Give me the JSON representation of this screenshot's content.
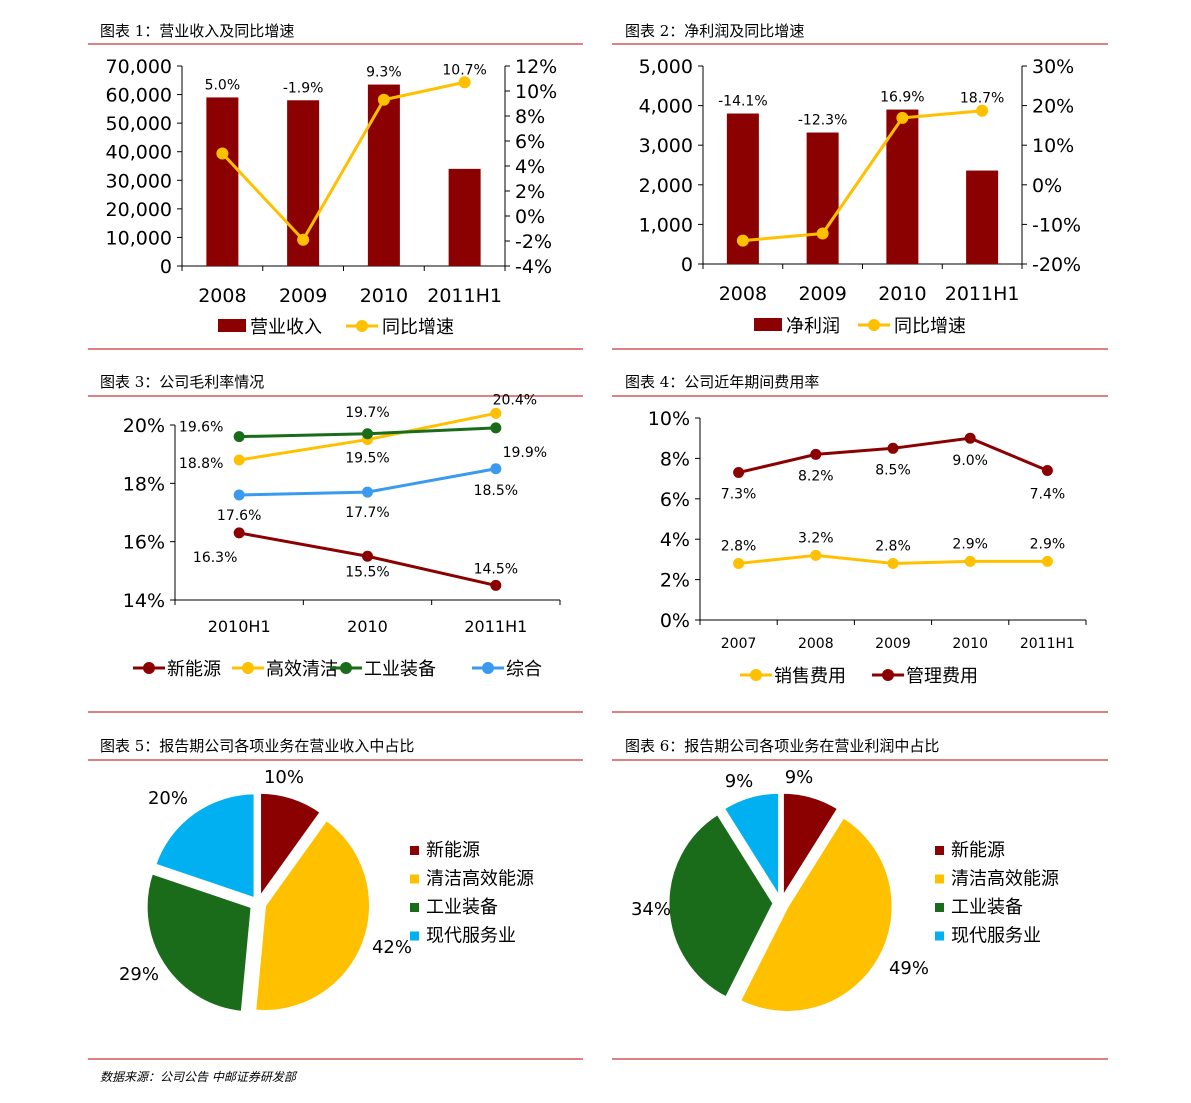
{
  "colors": {
    "dark_red": "#8B0000",
    "gold": "#FFC000",
    "green": "#1A6B1A",
    "blue": "#3A9AF0",
    "cyan": "#00B0F0",
    "rule": "#C00000"
  },
  "footer": {
    "source": "数据来源：公司公告 中邮证券研发部"
  },
  "chart_data": [
    {
      "id": "c1",
      "type": "bar+line",
      "title": "图表 1：营业收入及同比增速",
      "categories": [
        "2008",
        "2009",
        "2010",
        "2011H1"
      ],
      "series": [
        {
          "name": "营业收入",
          "kind": "bar",
          "axis": "left",
          "values": [
            59000,
            58000,
            63500,
            34000
          ]
        },
        {
          "name": "同比增速",
          "kind": "line",
          "axis": "right",
          "values": [
            5.0,
            -1.9,
            9.3,
            10.7
          ],
          "labels": [
            "5.0%",
            "-1.9%",
            "9.3%",
            "10.7%"
          ]
        }
      ],
      "yleft": {
        "min": 0,
        "max": 70000,
        "ticks": [
          "0",
          "10,000",
          "20,000",
          "30,000",
          "40,000",
          "50,000",
          "60,000",
          "70,000"
        ]
      },
      "yright": {
        "min": -4,
        "max": 12,
        "ticks": [
          "-4%",
          "-2%",
          "0%",
          "2%",
          "4%",
          "6%",
          "8%",
          "10%",
          "12%"
        ]
      },
      "legend": "bottom"
    },
    {
      "id": "c2",
      "type": "bar+line",
      "title": "图表 2：净利润及同比增速",
      "categories": [
        "2008",
        "2009",
        "2010",
        "2011H1"
      ],
      "series": [
        {
          "name": "净利润",
          "kind": "bar",
          "axis": "left",
          "values": [
            3800,
            3320,
            3900,
            2360
          ]
        },
        {
          "name": "同比增速",
          "kind": "line",
          "axis": "right",
          "values": [
            -14.1,
            -12.3,
            16.9,
            18.7
          ],
          "labels": [
            "-14.1%",
            "-12.3%",
            "16.9%",
            "18.7%"
          ]
        }
      ],
      "yleft": {
        "min": 0,
        "max": 5000,
        "ticks": [
          "0",
          "1,000",
          "2,000",
          "3,000",
          "4,000",
          "5,000"
        ]
      },
      "yright": {
        "min": -20,
        "max": 30,
        "ticks": [
          "-20%",
          "-10%",
          "0%",
          "10%",
          "20%",
          "30%"
        ]
      },
      "legend": "bottom"
    },
    {
      "id": "c3",
      "type": "line",
      "title": "图表 3：公司毛利率情况",
      "categories": [
        "2010H1",
        "2010",
        "2011H1"
      ],
      "series": [
        {
          "name": "新能源",
          "values": [
            16.3,
            15.5,
            14.5
          ],
          "labels": [
            "16.3%",
            "15.5%",
            "14.5%"
          ]
        },
        {
          "name": "高效清洁",
          "values": [
            18.8,
            19.5,
            20.4
          ],
          "labels": [
            "18.8%",
            "19.5%",
            "20.4%"
          ]
        },
        {
          "name": "工业装备",
          "values": [
            19.6,
            19.7,
            19.9
          ],
          "labels": [
            "19.6%",
            "19.7%",
            "19.9%"
          ]
        },
        {
          "name": "综合",
          "values": [
            17.6,
            17.7,
            18.5
          ],
          "labels": [
            "17.6%",
            "17.7%",
            "18.5%"
          ]
        }
      ],
      "y": {
        "min": 14,
        "max": 20,
        "ticks": [
          "14%",
          "16%",
          "18%",
          "20%"
        ]
      },
      "legend": "bottom"
    },
    {
      "id": "c4",
      "type": "line",
      "title": "图表 4：公司近年期间费用率",
      "categories": [
        "2007",
        "2008",
        "2009",
        "2010",
        "2011H1"
      ],
      "series": [
        {
          "name": "销售费用",
          "values": [
            2.8,
            3.2,
            2.8,
            2.9,
            2.9
          ],
          "labels": [
            "2.8%",
            "3.2%",
            "2.8%",
            "2.9%",
            "2.9%"
          ]
        },
        {
          "name": "管理费用",
          "values": [
            7.3,
            8.2,
            8.5,
            9.0,
            7.4
          ],
          "labels": [
            "7.3%",
            "8.2%",
            "8.5%",
            "9.0%",
            "7.4%"
          ]
        }
      ],
      "y": {
        "min": 0,
        "max": 10,
        "ticks": [
          "0%",
          "2%",
          "4%",
          "6%",
          "8%",
          "10%"
        ]
      },
      "legend": "bottom"
    },
    {
      "id": "c5",
      "type": "pie",
      "title": "图表 5：报告期公司各项业务在营业收入中占比",
      "slices": [
        {
          "name": "新能源",
          "value": 10,
          "label": "10%"
        },
        {
          "name": "清洁高效能源",
          "value": 42,
          "label": "42%"
        },
        {
          "name": "工业装备",
          "value": 29,
          "label": "29%"
        },
        {
          "name": "现代服务业",
          "value": 20,
          "label": "20%"
        }
      ],
      "legend": "right"
    },
    {
      "id": "c6",
      "type": "pie",
      "title": "图表 6：报告期公司各项业务在营业利润中占比",
      "slices": [
        {
          "name": "新能源",
          "value": 9,
          "label": "9%"
        },
        {
          "name": "清洁高效能源",
          "value": 49,
          "label": "49%"
        },
        {
          "name": "工业装备",
          "value": 34,
          "label": "34%"
        },
        {
          "name": "现代服务业",
          "value": 9,
          "label": "9%"
        }
      ],
      "legend": "right"
    }
  ]
}
